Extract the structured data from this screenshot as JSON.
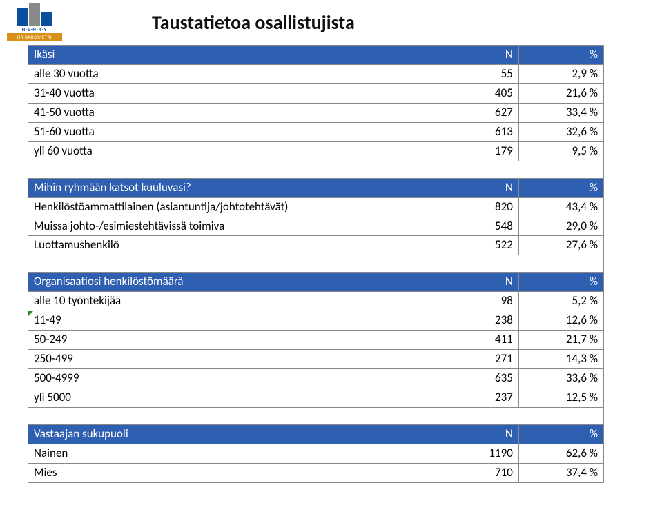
{
  "logo": {
    "brand": "H·E·N·R·Y",
    "tag": "HR BAROMETRI"
  },
  "title": "Taustatietoa osallistujista",
  "colors": {
    "header_bg": "#2f5fb0",
    "header_fg": "#ffffff",
    "border": "#888888",
    "title": "#111111"
  },
  "sections": [
    {
      "header": {
        "label": "Ikäsi",
        "n": "N",
        "pct": "%"
      },
      "rows": [
        {
          "label": "alle 30 vuotta",
          "n": "55",
          "pct": "2,9 %"
        },
        {
          "label": "31-40 vuotta",
          "n": "405",
          "pct": "21,6 %"
        },
        {
          "label": "41-50 vuotta",
          "n": "627",
          "pct": "33,4 %"
        },
        {
          "label": "51-60 vuotta",
          "n": "613",
          "pct": "32,6 %"
        },
        {
          "label": "yli 60 vuotta",
          "n": "179",
          "pct": "9,5 %"
        }
      ],
      "blank_after": true
    },
    {
      "header": {
        "label": "Mihin ryhmään katsot kuuluvasi?",
        "n": "N",
        "pct": "%"
      },
      "rows": [
        {
          "label": "Henkilöstöammattilainen (asiantuntija/johtotehtävät)",
          "n": "820",
          "pct": "43,4 %"
        },
        {
          "label": "Muissa johto-/esimiestehtävissä toimiva",
          "n": "548",
          "pct": "29,0 %"
        },
        {
          "label": "Luottamushenkilö",
          "n": "522",
          "pct": "27,6 %"
        }
      ],
      "blank_after": true
    },
    {
      "header": {
        "label": "Organisaatiosi henkilöstömäärä",
        "n": "N",
        "pct": "%"
      },
      "rows": [
        {
          "label": "alle 10 työntekijää",
          "n": "98",
          "pct": "5,2 %"
        },
        {
          "label": "11-49",
          "n": "238",
          "pct": "12,6 %",
          "mark": true
        },
        {
          "label": "50-249",
          "n": "411",
          "pct": "21,7 %"
        },
        {
          "label": "250-499",
          "n": "271",
          "pct": "14,3 %"
        },
        {
          "label": "500-4999",
          "n": "635",
          "pct": "33,6 %"
        },
        {
          "label": "yli 5000",
          "n": "237",
          "pct": "12,5 %"
        }
      ],
      "blank_after": true
    },
    {
      "header": {
        "label": "Vastaajan sukupuoli",
        "n": "N",
        "pct": "%"
      },
      "rows": [
        {
          "label": "Nainen",
          "n": "1190",
          "pct": "62,6 %"
        },
        {
          "label": "Mies",
          "n": "710",
          "pct": "37,4 %"
        }
      ],
      "blank_after": false
    }
  ]
}
